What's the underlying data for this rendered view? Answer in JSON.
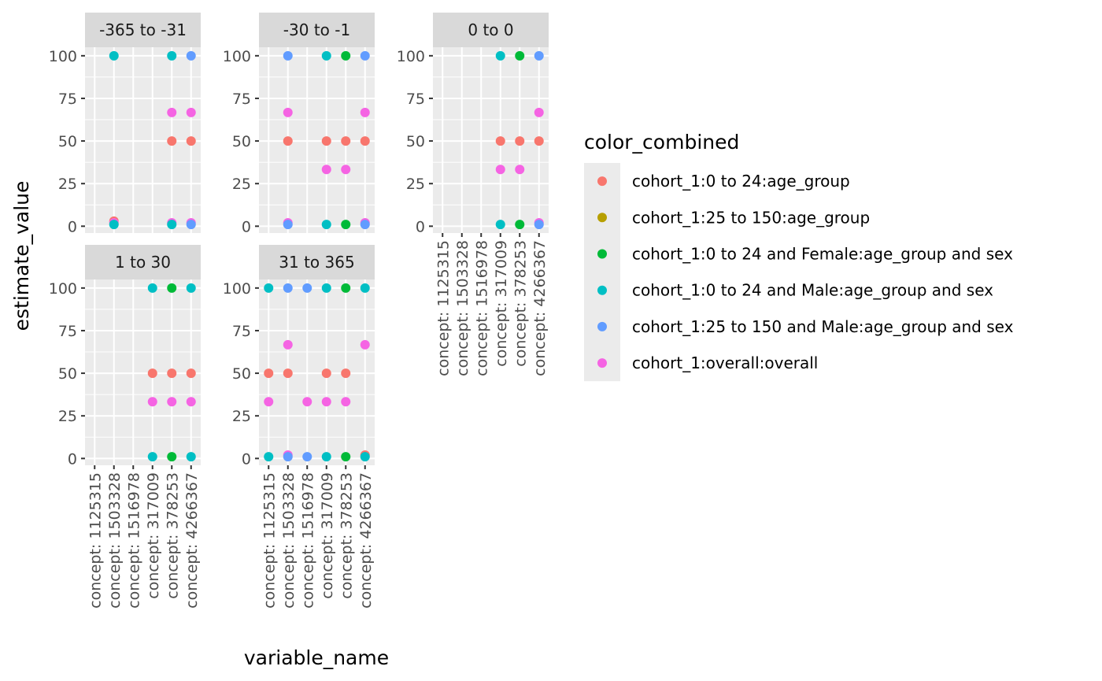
{
  "chart_data": {
    "type": "scatter",
    "xlabel": "variable_name",
    "ylabel": "estimate_value",
    "ylim": [
      -4,
      105
    ],
    "yticks": [
      0,
      25,
      50,
      75,
      100
    ],
    "categories": [
      "concept: 1125315",
      "concept: 1503328",
      "concept: 1516978",
      "concept: 317009",
      "concept: 378253",
      "concept: 4266367"
    ],
    "legend": {
      "title": "color_combined",
      "placement": "right",
      "items": [
        {
          "label": "cohort_1:0 to 24:age_group",
          "color": "#F8766D"
        },
        {
          "label": "cohort_1:25 to 150:age_group",
          "color": "#B79F00"
        },
        {
          "label": "cohort_1:0 to 24 and Female:age_group and sex",
          "color": "#00BA38"
        },
        {
          "label": "cohort_1:0 to 24 and Male:age_group and sex",
          "color": "#00BFC4"
        },
        {
          "label": "cohort_1:25 to 150 and Male:age_group and sex",
          "color": "#619CFF"
        },
        {
          "label": "cohort_1:overall:overall",
          "color": "#F564E3"
        }
      ]
    },
    "panels": [
      {
        "title": "-365 to -31",
        "points": [
          {
            "cat": 1,
            "y": 3,
            "series": 0
          },
          {
            "cat": 1,
            "y": 2,
            "series": 5
          },
          {
            "cat": 1,
            "y": 1,
            "series": 3
          },
          {
            "cat": 1,
            "y": 100,
            "series": 3
          },
          {
            "cat": 4,
            "y": 50,
            "series": 0
          },
          {
            "cat": 4,
            "y": 66.7,
            "series": 5
          },
          {
            "cat": 4,
            "y": 2,
            "series": 5
          },
          {
            "cat": 4,
            "y": 1,
            "series": 3
          },
          {
            "cat": 4,
            "y": 100,
            "series": 3
          },
          {
            "cat": 5,
            "y": 50,
            "series": 0
          },
          {
            "cat": 5,
            "y": 66.7,
            "series": 5
          },
          {
            "cat": 5,
            "y": 2,
            "series": 5
          },
          {
            "cat": 5,
            "y": 1,
            "series": 4
          },
          {
            "cat": 5,
            "y": 100,
            "series": 4
          }
        ]
      },
      {
        "title": "-30 to -1",
        "points": [
          {
            "cat": 1,
            "y": 50,
            "series": 0
          },
          {
            "cat": 1,
            "y": 66.7,
            "series": 5
          },
          {
            "cat": 1,
            "y": 2,
            "series": 5
          },
          {
            "cat": 1,
            "y": 1,
            "series": 4
          },
          {
            "cat": 1,
            "y": 100,
            "series": 4
          },
          {
            "cat": 3,
            "y": 50,
            "series": 0
          },
          {
            "cat": 3,
            "y": 33.3,
            "series": 5
          },
          {
            "cat": 3,
            "y": 1,
            "series": 3
          },
          {
            "cat": 3,
            "y": 100,
            "series": 3
          },
          {
            "cat": 4,
            "y": 50,
            "series": 0
          },
          {
            "cat": 4,
            "y": 33.3,
            "series": 5
          },
          {
            "cat": 4,
            "y": 1,
            "series": 2
          },
          {
            "cat": 4,
            "y": 100,
            "series": 2
          },
          {
            "cat": 5,
            "y": 50,
            "series": 0
          },
          {
            "cat": 5,
            "y": 66.7,
            "series": 5
          },
          {
            "cat": 5,
            "y": 2,
            "series": 5
          },
          {
            "cat": 5,
            "y": 1,
            "series": 4
          },
          {
            "cat": 5,
            "y": 100,
            "series": 4
          }
        ]
      },
      {
        "title": "0 to 0",
        "points": [
          {
            "cat": 3,
            "y": 50,
            "series": 0
          },
          {
            "cat": 3,
            "y": 33.3,
            "series": 5
          },
          {
            "cat": 3,
            "y": 1,
            "series": 3
          },
          {
            "cat": 3,
            "y": 100,
            "series": 3
          },
          {
            "cat": 4,
            "y": 50,
            "series": 0
          },
          {
            "cat": 4,
            "y": 33.3,
            "series": 5
          },
          {
            "cat": 4,
            "y": 1,
            "series": 2
          },
          {
            "cat": 4,
            "y": 100,
            "series": 2
          },
          {
            "cat": 5,
            "y": 50,
            "series": 0
          },
          {
            "cat": 5,
            "y": 66.7,
            "series": 5
          },
          {
            "cat": 5,
            "y": 2,
            "series": 5
          },
          {
            "cat": 5,
            "y": 1,
            "series": 4
          },
          {
            "cat": 5,
            "y": 100,
            "series": 4
          }
        ]
      },
      {
        "title": "1 to 30",
        "points": [
          {
            "cat": 3,
            "y": 50,
            "series": 0
          },
          {
            "cat": 3,
            "y": 33.3,
            "series": 5
          },
          {
            "cat": 3,
            "y": 1,
            "series": 3
          },
          {
            "cat": 3,
            "y": 100,
            "series": 3
          },
          {
            "cat": 4,
            "y": 50,
            "series": 0
          },
          {
            "cat": 4,
            "y": 33.3,
            "series": 5
          },
          {
            "cat": 4,
            "y": 1,
            "series": 2
          },
          {
            "cat": 4,
            "y": 100,
            "series": 2
          },
          {
            "cat": 5,
            "y": 50,
            "series": 0
          },
          {
            "cat": 5,
            "y": 33.3,
            "series": 5
          },
          {
            "cat": 5,
            "y": 1,
            "series": 3
          },
          {
            "cat": 5,
            "y": 100,
            "series": 3
          }
        ]
      },
      {
        "title": "31 to 365",
        "points": [
          {
            "cat": 0,
            "y": 50,
            "series": 0
          },
          {
            "cat": 0,
            "y": 33.3,
            "series": 5
          },
          {
            "cat": 0,
            "y": 1,
            "series": 3
          },
          {
            "cat": 0,
            "y": 100,
            "series": 3
          },
          {
            "cat": 1,
            "y": 50,
            "series": 0
          },
          {
            "cat": 1,
            "y": 66.7,
            "series": 5
          },
          {
            "cat": 1,
            "y": 2,
            "series": 5
          },
          {
            "cat": 1,
            "y": 1,
            "series": 4
          },
          {
            "cat": 1,
            "y": 100,
            "series": 4
          },
          {
            "cat": 2,
            "y": 33.3,
            "series": 5
          },
          {
            "cat": 2,
            "y": 1,
            "series": 4
          },
          {
            "cat": 2,
            "y": 100,
            "series": 4
          },
          {
            "cat": 3,
            "y": 50,
            "series": 0
          },
          {
            "cat": 3,
            "y": 33.3,
            "series": 5
          },
          {
            "cat": 3,
            "y": 1,
            "series": 3
          },
          {
            "cat": 3,
            "y": 100,
            "series": 3
          },
          {
            "cat": 4,
            "y": 50,
            "series": 0
          },
          {
            "cat": 4,
            "y": 33.3,
            "series": 5
          },
          {
            "cat": 4,
            "y": 1,
            "series": 2
          },
          {
            "cat": 4,
            "y": 100,
            "series": 2
          },
          {
            "cat": 5,
            "y": 66.7,
            "series": 5
          },
          {
            "cat": 5,
            "y": 2,
            "series": 0
          },
          {
            "cat": 5,
            "y": 1,
            "series": 3
          },
          {
            "cat": 5,
            "y": 100,
            "series": 3
          }
        ]
      }
    ]
  }
}
